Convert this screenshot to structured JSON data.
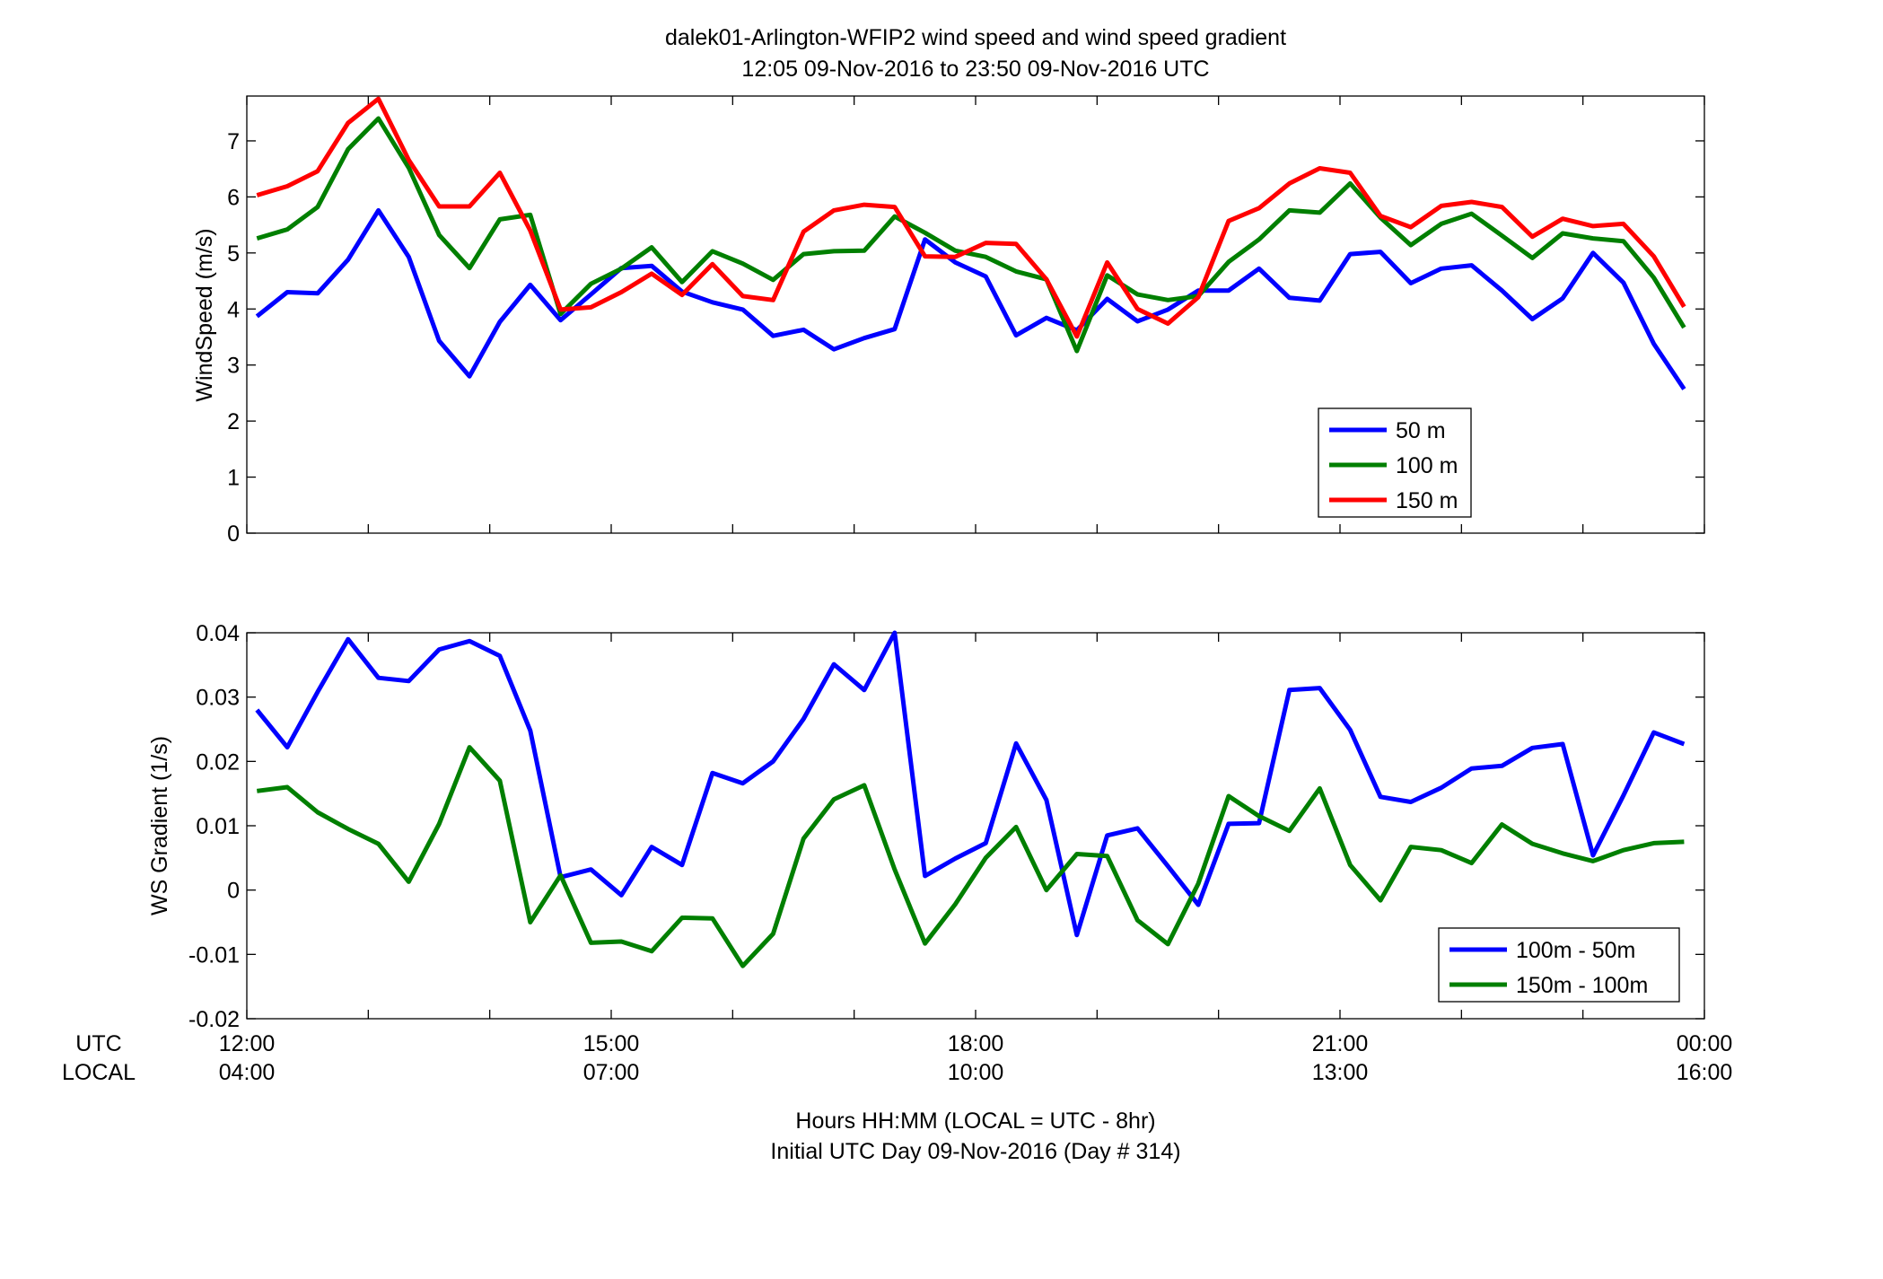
{
  "figure": {
    "title_line1": "dalek01-Arlington-WFIP2  wind speed and wind speed gradient",
    "title_line2": "12:05 09-Nov-2016 to 23:50 09-Nov-2016  UTC",
    "xlabel_line1": "Hours HH:MM  (LOCAL = UTC - 8hr)",
    "xlabel_line2": "Initial UTC Day 09-Nov-2016 (Day # 314)",
    "utc_row_label": "UTC",
    "local_row_label": "LOCAL"
  },
  "time_axis": {
    "xlim_hours_utc": [
      12,
      24
    ],
    "ticks": [
      {
        "utc": "12:00",
        "local": "04:00",
        "hour": 12
      },
      {
        "utc": "15:00",
        "local": "07:00",
        "hour": 15
      },
      {
        "utc": "18:00",
        "local": "10:00",
        "hour": 18
      },
      {
        "utc": "21:00",
        "local": "13:00",
        "hour": 21
      },
      {
        "utc": "00:00",
        "local": "16:00",
        "hour": 24
      }
    ],
    "sample_interval_minutes": 15,
    "first_sample": "12:05",
    "last_sample": "23:50"
  },
  "chart_data": [
    {
      "type": "line",
      "ylabel": "WindSpeed (m/s)",
      "ylim": [
        0,
        7.8
      ],
      "yticks": [
        0,
        1,
        2,
        3,
        4,
        5,
        6,
        7
      ],
      "legend_position": "bottom-right",
      "series": [
        {
          "name": "50 m",
          "color": "#0000ff",
          "values": [
            3.87,
            4.3,
            4.28,
            4.88,
            5.76,
            4.93,
            3.43,
            2.8,
            3.77,
            4.43,
            3.8,
            4.26,
            4.73,
            4.77,
            4.31,
            4.12,
            3.99,
            3.52,
            3.63,
            3.28,
            3.48,
            3.64,
            5.24,
            4.83,
            4.58,
            3.53,
            3.84,
            3.62,
            4.18,
            3.78,
            3.99,
            4.33,
            4.33,
            4.72,
            4.2,
            4.15,
            4.98,
            5.02,
            4.46,
            4.72,
            4.78,
            4.33,
            3.82,
            4.19,
            5.0,
            4.47,
            3.38,
            2.57
          ]
        },
        {
          "name": "100 m",
          "color": "#007f00",
          "values": [
            5.26,
            5.42,
            5.82,
            6.85,
            7.4,
            6.52,
            5.32,
            4.73,
            5.6,
            5.68,
            3.91,
            4.45,
            4.72,
            5.1,
            4.48,
            5.03,
            4.81,
            4.52,
            4.98,
            5.03,
            5.04,
            5.65,
            5.36,
            5.04,
            4.93,
            4.67,
            4.53,
            3.25,
            4.6,
            4.26,
            4.16,
            4.23,
            4.84,
            5.24,
            5.76,
            5.72,
            6.24,
            5.63,
            5.14,
            5.52,
            5.7,
            5.31,
            4.91,
            5.35,
            5.26,
            5.21,
            4.56,
            3.67
          ]
        },
        {
          "name": "150 m",
          "color": "#ff0000",
          "values": [
            6.03,
            6.19,
            6.46,
            7.32,
            7.75,
            6.66,
            5.83,
            5.83,
            6.43,
            5.4,
            3.99,
            4.03,
            4.3,
            4.63,
            4.25,
            4.8,
            4.23,
            4.16,
            5.38,
            5.76,
            5.86,
            5.82,
            4.94,
            4.93,
            5.18,
            5.16,
            4.53,
            3.51,
            4.83,
            4.0,
            3.74,
            4.21,
            5.57,
            5.8,
            6.24,
            6.51,
            6.43,
            5.66,
            5.46,
            5.84,
            5.91,
            5.82,
            5.29,
            5.61,
            5.48,
            5.52,
            4.94,
            4.04
          ]
        }
      ]
    },
    {
      "type": "line",
      "ylabel": "WS Gradient (1/s)",
      "ylim": [
        -0.02,
        0.04
      ],
      "yticks": [
        -0.02,
        -0.01,
        0,
        0.01,
        0.02,
        0.03,
        0.04
      ],
      "legend_position": "bottom-right",
      "series": [
        {
          "name": "100m - 50m",
          "color": "#0000ff",
          "values": [
            0.028,
            0.0222,
            0.0308,
            0.039,
            0.033,
            0.0325,
            0.0374,
            0.0387,
            0.0364,
            0.0248,
            0.002,
            0.0032,
            -0.0008,
            0.0067,
            0.0039,
            0.0182,
            0.0166,
            0.02,
            0.0266,
            0.0351,
            0.0311,
            0.04,
            0.0022,
            0.0049,
            0.0073,
            0.0228,
            0.014,
            -0.007,
            0.0085,
            0.0096,
            0.0037,
            -0.0023,
            0.0103,
            0.0104,
            0.0311,
            0.0314,
            0.0249,
            0.0145,
            0.0137,
            0.0159,
            0.0189,
            0.0193,
            0.0221,
            0.0227,
            0.0054,
            0.0147,
            0.0245,
            0.0227
          ]
        },
        {
          "name": "150m - 100m",
          "color": "#007f00",
          "values": [
            0.0154,
            0.016,
            0.0121,
            0.0095,
            0.0072,
            0.0013,
            0.0103,
            0.0222,
            0.017,
            -0.005,
            0.0023,
            -0.0082,
            -0.008,
            -0.0095,
            -0.0043,
            -0.0044,
            -0.0118,
            -0.0068,
            0.008,
            0.0141,
            0.0163,
            0.0032,
            -0.0083,
            -0.0022,
            0.005,
            0.0098,
            0.0,
            0.0056,
            0.0053,
            -0.0047,
            -0.0084,
            0.001,
            0.0146,
            0.0115,
            0.0092,
            0.0158,
            0.0039,
            -0.0016,
            0.0067,
            0.0062,
            0.0042,
            0.0102,
            0.0072,
            0.0057,
            0.0045,
            0.0062,
            0.0073,
            0.0075
          ]
        }
      ]
    }
  ]
}
